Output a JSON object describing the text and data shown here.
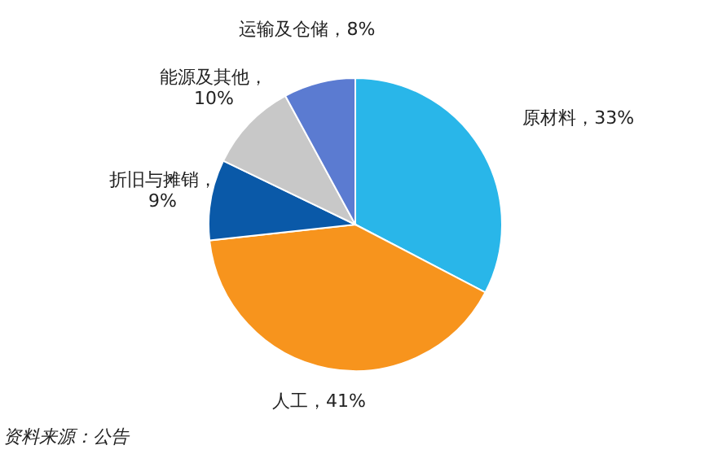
{
  "chart_data": {
    "type": "pie",
    "categories": [
      "原材料",
      "人工",
      "折旧与摊销",
      "能源及其他",
      "运输及仓储"
    ],
    "values": [
      33,
      41,
      9,
      10,
      8
    ],
    "value_labels": [
      "，33%",
      "，41%",
      "，9%",
      "，10%",
      "，8%"
    ],
    "colors": [
      "#29b6e9",
      "#f7941d",
      "#0a59a8",
      "#c8c8c8",
      "#5b7bd1"
    ],
    "annotations": [
      "资料来源：公告"
    ]
  }
}
